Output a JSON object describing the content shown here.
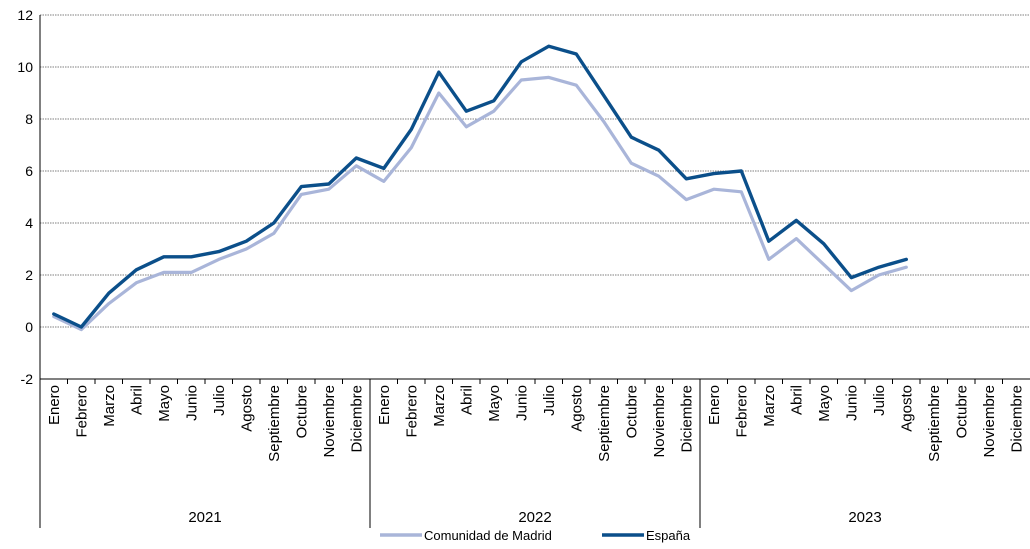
{
  "chart_data": {
    "type": "line",
    "title": "",
    "xlabel": "",
    "ylabel": "",
    "ylim": [
      -2,
      12
    ],
    "yticks": [
      -2,
      0,
      2,
      4,
      6,
      8,
      10,
      12
    ],
    "grid": true,
    "legend_position": "bottom",
    "years": [
      {
        "label": "2021",
        "months": [
          "Enero",
          "Febrero",
          "Marzo",
          "Abril",
          "Mayo",
          "Junio",
          "Julio",
          "Agosto",
          "Septiembre",
          "Octubre",
          "Noviembre",
          "Diciembre"
        ]
      },
      {
        "label": "2022",
        "months": [
          "Enero",
          "Febrero",
          "Marzo",
          "Abril",
          "Mayo",
          "Junio",
          "Julio",
          "Agosto",
          "Septiembre",
          "Octubre",
          "Noviembre",
          "Diciembre"
        ]
      },
      {
        "label": "2023",
        "months": [
          "Enero",
          "Febrero",
          "Marzo",
          "Abril",
          "Mayo",
          "Junio",
          "Julio",
          "Agosto",
          "Septiembre",
          "Octubre",
          "Noviembre",
          "Diciembre"
        ]
      }
    ],
    "series": [
      {
        "name": "Comunidad de Madrid",
        "color": "#a9b5d9",
        "values": [
          0.4,
          -0.1,
          0.9,
          1.7,
          2.1,
          2.1,
          2.6,
          3.0,
          3.6,
          5.1,
          5.3,
          6.2,
          5.6,
          6.9,
          9.0,
          7.7,
          8.3,
          9.5,
          9.6,
          9.3,
          7.9,
          6.3,
          5.8,
          4.9,
          5.3,
          5.2,
          2.6,
          3.4,
          2.4,
          1.4,
          2.0,
          2.3
        ]
      },
      {
        "name": "España",
        "color": "#0b4f8a",
        "values": [
          0.5,
          0.0,
          1.3,
          2.2,
          2.7,
          2.7,
          2.9,
          3.3,
          4.0,
          5.4,
          5.5,
          6.5,
          6.1,
          7.6,
          9.8,
          8.3,
          8.7,
          10.2,
          10.8,
          10.5,
          8.9,
          7.3,
          6.8,
          5.7,
          5.9,
          6.0,
          3.3,
          4.1,
          3.2,
          1.9,
          2.3,
          2.6
        ]
      }
    ]
  }
}
